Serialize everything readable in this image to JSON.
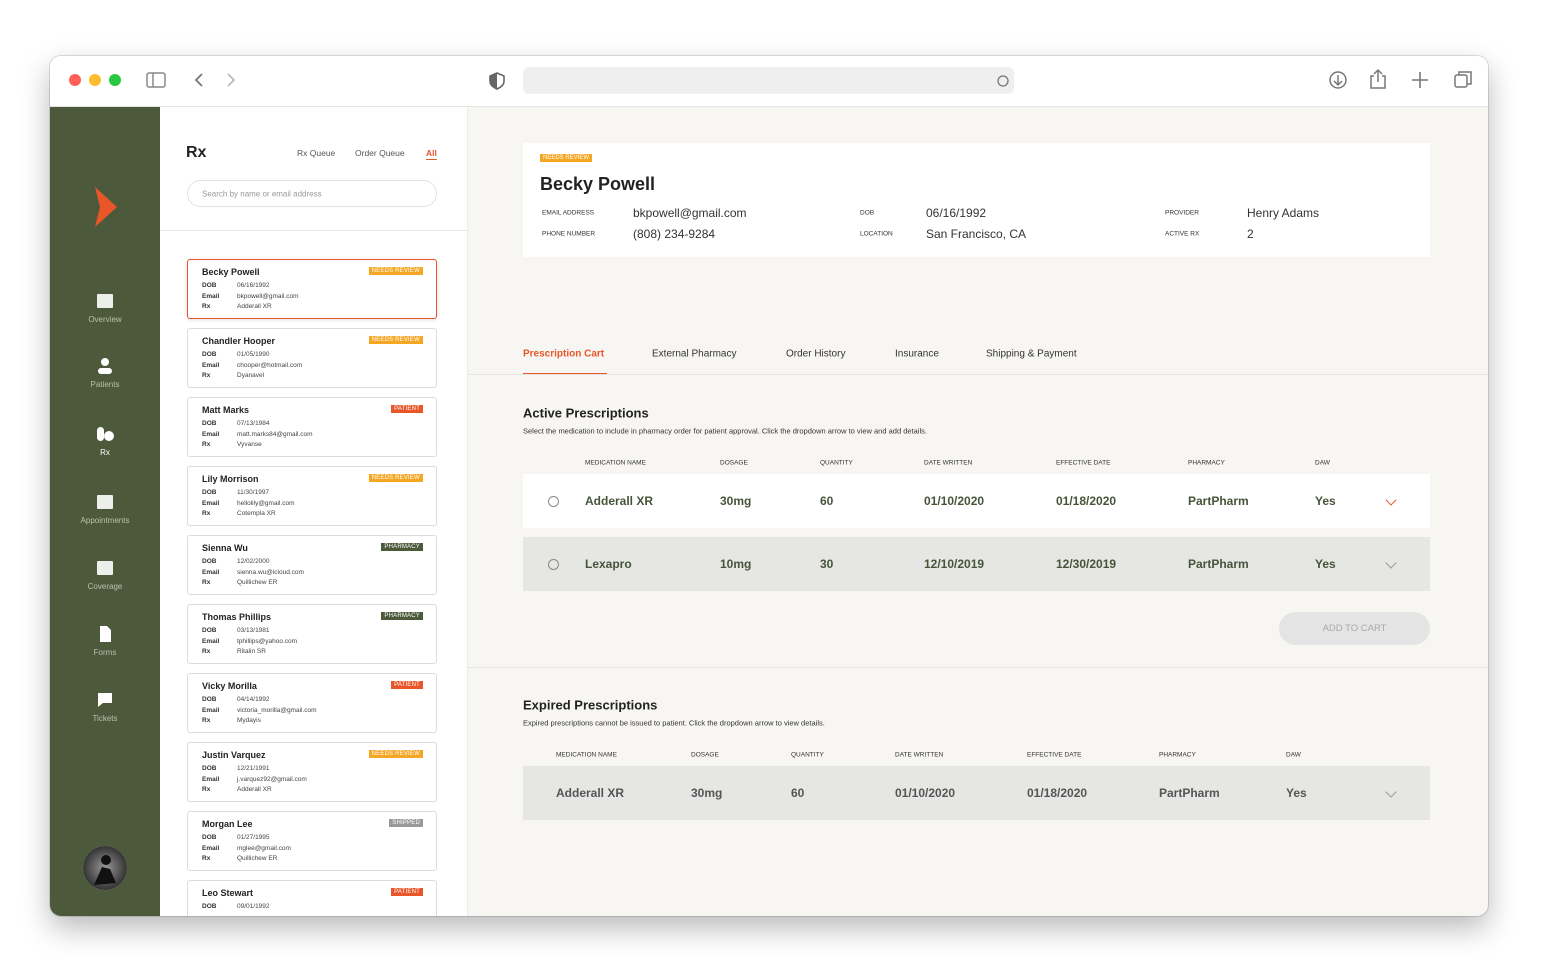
{
  "sidebar": {
    "nav": [
      "Overview",
      "Patients",
      "Rx",
      "Appointments",
      "Coverage",
      "Forms",
      "Tickets"
    ]
  },
  "list": {
    "title": "Rx",
    "tabs": [
      "Rx Queue",
      "Order Queue",
      "All"
    ],
    "search_placeholder": "Search by name or email address",
    "field_labels": [
      "DOB",
      "Email",
      "Rx"
    ],
    "patients": [
      {
        "name": "Becky Powell",
        "status": "NEEDS REVIEW",
        "status_color": "#f5a623",
        "dob": "06/16/1992",
        "email": "bkpowell@gmail.com",
        "rx": "Adderall XR"
      },
      {
        "name": "Chandler Hooper",
        "status": "NEEDS REVIEW",
        "status_color": "#f5a623",
        "dob": "01/05/1990",
        "email": "chooper@hotmail.com",
        "rx": "Dyanavel"
      },
      {
        "name": "Matt Marks",
        "status": "PATIENT",
        "status_color": "#e8562a",
        "dob": "07/13/1984",
        "email": "matt.marks84@gmail.com",
        "rx": "Vyvanse"
      },
      {
        "name": "Lily Morrison",
        "status": "NEEDS REVIEW",
        "status_color": "#f5a623",
        "dob": "11/30/1997",
        "email": "hellolily@gmail.com",
        "rx": "Cotempla XR"
      },
      {
        "name": "Sienna Wu",
        "status": "PHARMACY",
        "status_color": "#4b5a3a",
        "dob": "12/02/2000",
        "email": "sienna.wu@icloud.com",
        "rx": "Quillichew ER"
      },
      {
        "name": "Thomas Phillips",
        "status": "PHARMACY",
        "status_color": "#4b5a3a",
        "dob": "03/13/1981",
        "email": "tphillips@yahoo.com",
        "rx": "Ritalin SR"
      },
      {
        "name": "Vicky Morilla",
        "status": "PATIENT",
        "status_color": "#e8562a",
        "dob": "04/14/1992",
        "email": "victoria_morilla@gmail.com",
        "rx": "Mydayis"
      },
      {
        "name": "Justin Varquez",
        "status": "NEEDS REVIEW",
        "status_color": "#f5a623",
        "dob": "12/21/1991",
        "email": "j.varquez92@gmail.com",
        "rx": "Adderall XR"
      },
      {
        "name": "Morgan Lee",
        "status": "SHIPPED",
        "status_color": "#9a9a9a",
        "dob": "01/27/1995",
        "email": "mglee@gmail.com",
        "rx": "Quillichew ER"
      },
      {
        "name": "Leo Stewart",
        "status": "PATIENT",
        "status_color": "#e8562a",
        "dob": "09/01/1992"
      }
    ]
  },
  "patient": {
    "status": "NEEDS REVIEW",
    "name": "Becky Powell",
    "fields": [
      {
        "label": "EMAIL ADDRESS",
        "value": "bkpowell@gmail.com"
      },
      {
        "label": "PHONE NUMBER",
        "value": "(808) 234-9284"
      },
      {
        "label": "DOB",
        "value": "06/16/1992"
      },
      {
        "label": "LOCATION",
        "value": "San Francisco, CA"
      },
      {
        "label": "PROVIDER",
        "value": "Henry Adams"
      },
      {
        "label": "ACTIVE RX",
        "value": "2"
      }
    ]
  },
  "tabs": [
    "Prescription Cart",
    "External Pharmacy",
    "Order History",
    "Insurance",
    "Shipping & Payment"
  ],
  "active": {
    "title": "Active Prescriptions",
    "description": "Select the medication to include in pharmacy order for patient approval. Click the dropdown arrow to view and add details.",
    "columns": [
      "MEDICATION NAME",
      "DOSAGE",
      "QUANTITY",
      "DATE WRITTEN",
      "EFFECTIVE DATE",
      "PHARMACY",
      "DAW"
    ],
    "rows": [
      [
        "Adderall XR",
        "30mg",
        "60",
        "01/10/2020",
        "01/18/2020",
        "PartPharm",
        "Yes"
      ],
      [
        "Lexapro",
        "10mg",
        "30",
        "12/10/2019",
        "12/30/2019",
        "PartPharm",
        "Yes"
      ]
    ],
    "button": "ADD TO CART"
  },
  "expired": {
    "title": "Expired Prescriptions",
    "description": "Expired prescriptions cannot be issued to patient. Click the dropdown arrow to view details.",
    "columns": [
      "MEDICATION NAME",
      "DOSAGE",
      "QUANTITY",
      "DATE WRITTEN",
      "EFFECTIVE DATE",
      "PHARMACY",
      "DAW"
    ],
    "rows": [
      [
        "Adderall XR",
        "30mg",
        "60",
        "01/10/2020",
        "01/18/2020",
        "PartPharm",
        "Yes"
      ]
    ]
  }
}
